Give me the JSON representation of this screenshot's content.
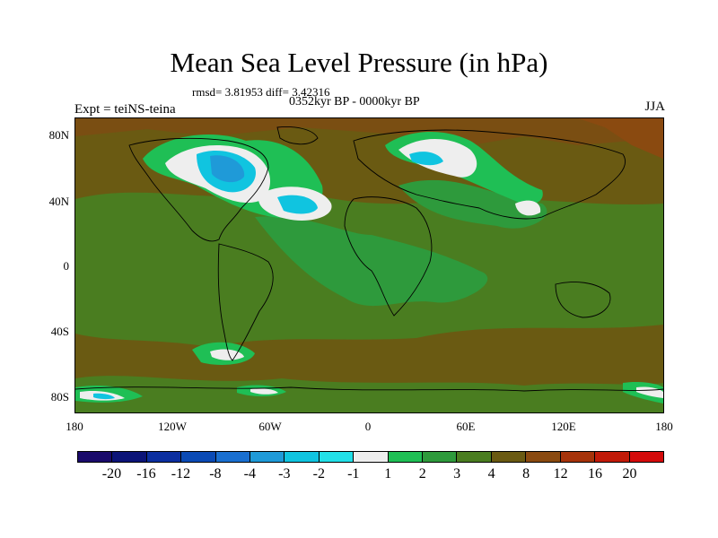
{
  "header": {
    "title": "Mean Sea Level Pressure (in hPa)",
    "stats": "rmsd= 3.81953 diff= 3.42316",
    "subtitle": "0352kyr BP - 0000kyr BP",
    "left_label": "Expt = teiNS-teina",
    "right_label": "JJA"
  },
  "axes": {
    "y_ticks": [
      "80N",
      "40N",
      "0",
      "40S",
      "80S"
    ],
    "x_ticks": [
      "180",
      "120W",
      "60W",
      "0",
      "60E",
      "120E",
      "180"
    ]
  },
  "colorbar": {
    "labels": [
      "-20",
      "-16",
      "-12",
      "-8",
      "-4",
      "-3",
      "-2",
      "-1",
      "1",
      "2",
      "3",
      "4",
      "8",
      "12",
      "16",
      "20"
    ],
    "colors": [
      "#1a0a6b",
      "#0c1478",
      "#0c2fa0",
      "#0a4ab5",
      "#1a6fd0",
      "#1f9ad8",
      "#10c4e0",
      "#22e0e8",
      "#eeeeee",
      "#1fbf55",
      "#2e9a3c",
      "#4a7d20",
      "#6a5a12",
      "#8a4a10",
      "#a6330a",
      "#c11a08",
      "#d40a0a"
    ]
  },
  "field_colors": {
    "background": "#6a5a12",
    "green_light": "#4a7d20",
    "green_mid": "#2e9a3c",
    "green_bright": "#1fbf55",
    "white": "#eeeeee",
    "cyan": "#10c4e0",
    "blue": "#1f9ad8",
    "dark_blue": "#0a4ab5",
    "brown_dark": "#8a4a10"
  }
}
